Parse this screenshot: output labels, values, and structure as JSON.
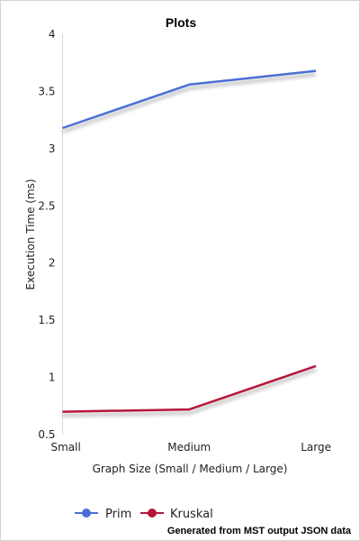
{
  "chart_data": {
    "type": "line",
    "title": "Plots",
    "categories": [
      "Small",
      "Medium",
      "Large"
    ],
    "xlabel": "Graph Size (Small / Medium / Large)",
    "ylabel": "Execution Time (ms)",
    "ylim": [
      0.5,
      4
    ],
    "yticks": [
      "0.5",
      "1",
      "1.5",
      "2",
      "2.5",
      "3",
      "3.5",
      "4"
    ],
    "grid": false,
    "legend_position": "bottom-left",
    "series": [
      {
        "name": "Prim",
        "values": [
          3.18,
          3.56,
          3.68
        ],
        "color": "#4a6fd4"
      },
      {
        "name": "Kruskal",
        "values": [
          0.7,
          0.72,
          1.1
        ],
        "color": "#b5163a"
      }
    ]
  },
  "footer": {
    "note": "Generated from MST output JSON data"
  }
}
